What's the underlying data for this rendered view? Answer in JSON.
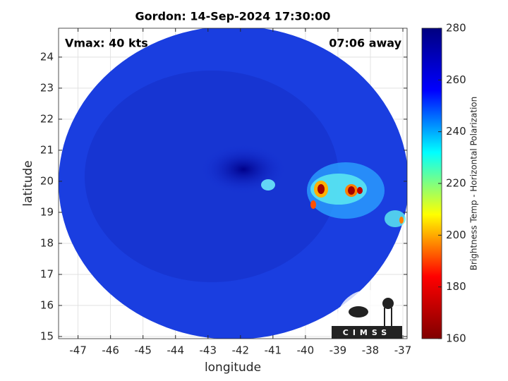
{
  "chart_data": {
    "type": "image",
    "title": "Gordon: 14-Sep-2024 17:30:00",
    "annotations": [
      "Vmax: 40 kts",
      "07:06 away"
    ],
    "xlabel": "longitude",
    "ylabel": "latitude",
    "xlim": [
      -47.6,
      -36.87
    ],
    "xticks": [
      -47,
      -46,
      -45,
      -44,
      -43,
      -42,
      -41,
      -40,
      -39,
      -38,
      -37
    ],
    "ylim": [
      14.93,
      24.93
    ],
    "yticks": [
      15,
      16,
      17,
      18,
      19,
      20,
      21,
      22,
      23,
      24
    ],
    "grid": true,
    "colorbar": {
      "label": "Brightness Temp - Horizontal Polarization",
      "clim": [
        160,
        280
      ],
      "ticks": [
        160,
        180,
        200,
        220,
        240,
        260,
        280
      ],
      "colormap": [
        "#800000",
        "#ff0000",
        "#ffff00",
        "#00ffff",
        "#0000ff",
        "#000080"
      ]
    },
    "logo": "CIMSS"
  }
}
